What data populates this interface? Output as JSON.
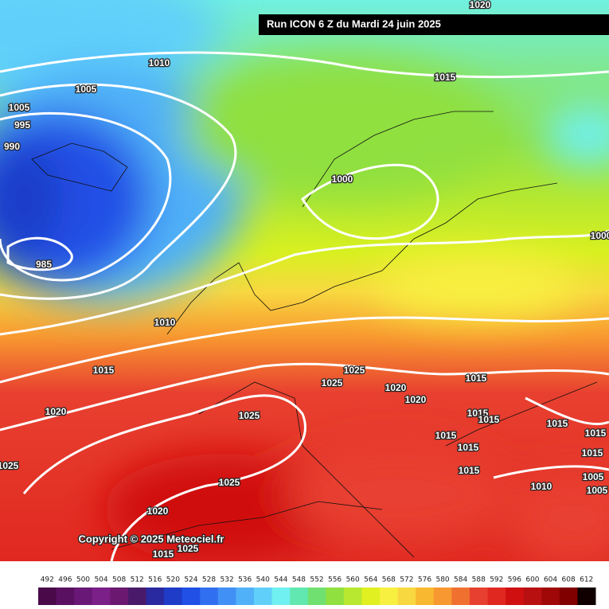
{
  "header": {
    "title": "Run ICON 6 Z du Mardi 24 juin 2025"
  },
  "copyright": "Copyright © 2025 Meteociel.fr",
  "isobar_labels": [
    1020,
    1010,
    1005,
    1015,
    1005,
    995,
    990,
    1000,
    985,
    1010,
    1015,
    1025,
    1025,
    1015,
    1020,
    1020,
    1020,
    1025,
    1015,
    1015,
    1015,
    1015,
    1015,
    1015,
    1015,
    1015,
    1025,
    1025,
    1010,
    1005,
    1005,
    1020,
    1015,
    1025,
    1000
  ],
  "legend": {
    "values": [
      492,
      496,
      500,
      504,
      508,
      512,
      516,
      520,
      524,
      528,
      532,
      536,
      540,
      544,
      548,
      552,
      556,
      560,
      564,
      568,
      572,
      576,
      580,
      584,
      588,
      592,
      596,
      600,
      604,
      608,
      612
    ],
    "colors": [
      "#4a0a4a",
      "#5a1060",
      "#6a1878",
      "#7a2088",
      "#6a1870",
      "#4a1a6a",
      "#2a2aa0",
      "#1e3cc8",
      "#2050e6",
      "#3070f0",
      "#4090f5",
      "#50b0f8",
      "#60d0fa",
      "#70f0f0",
      "#60e8b0",
      "#70e070",
      "#90e040",
      "#b8e830",
      "#e0f020",
      "#f8f040",
      "#f8d840",
      "#f8b830",
      "#f89830",
      "#f07030",
      "#e84030",
      "#e02820",
      "#d01010",
      "#b81010",
      "#a00808",
      "#800000",
      "#100000"
    ]
  }
}
